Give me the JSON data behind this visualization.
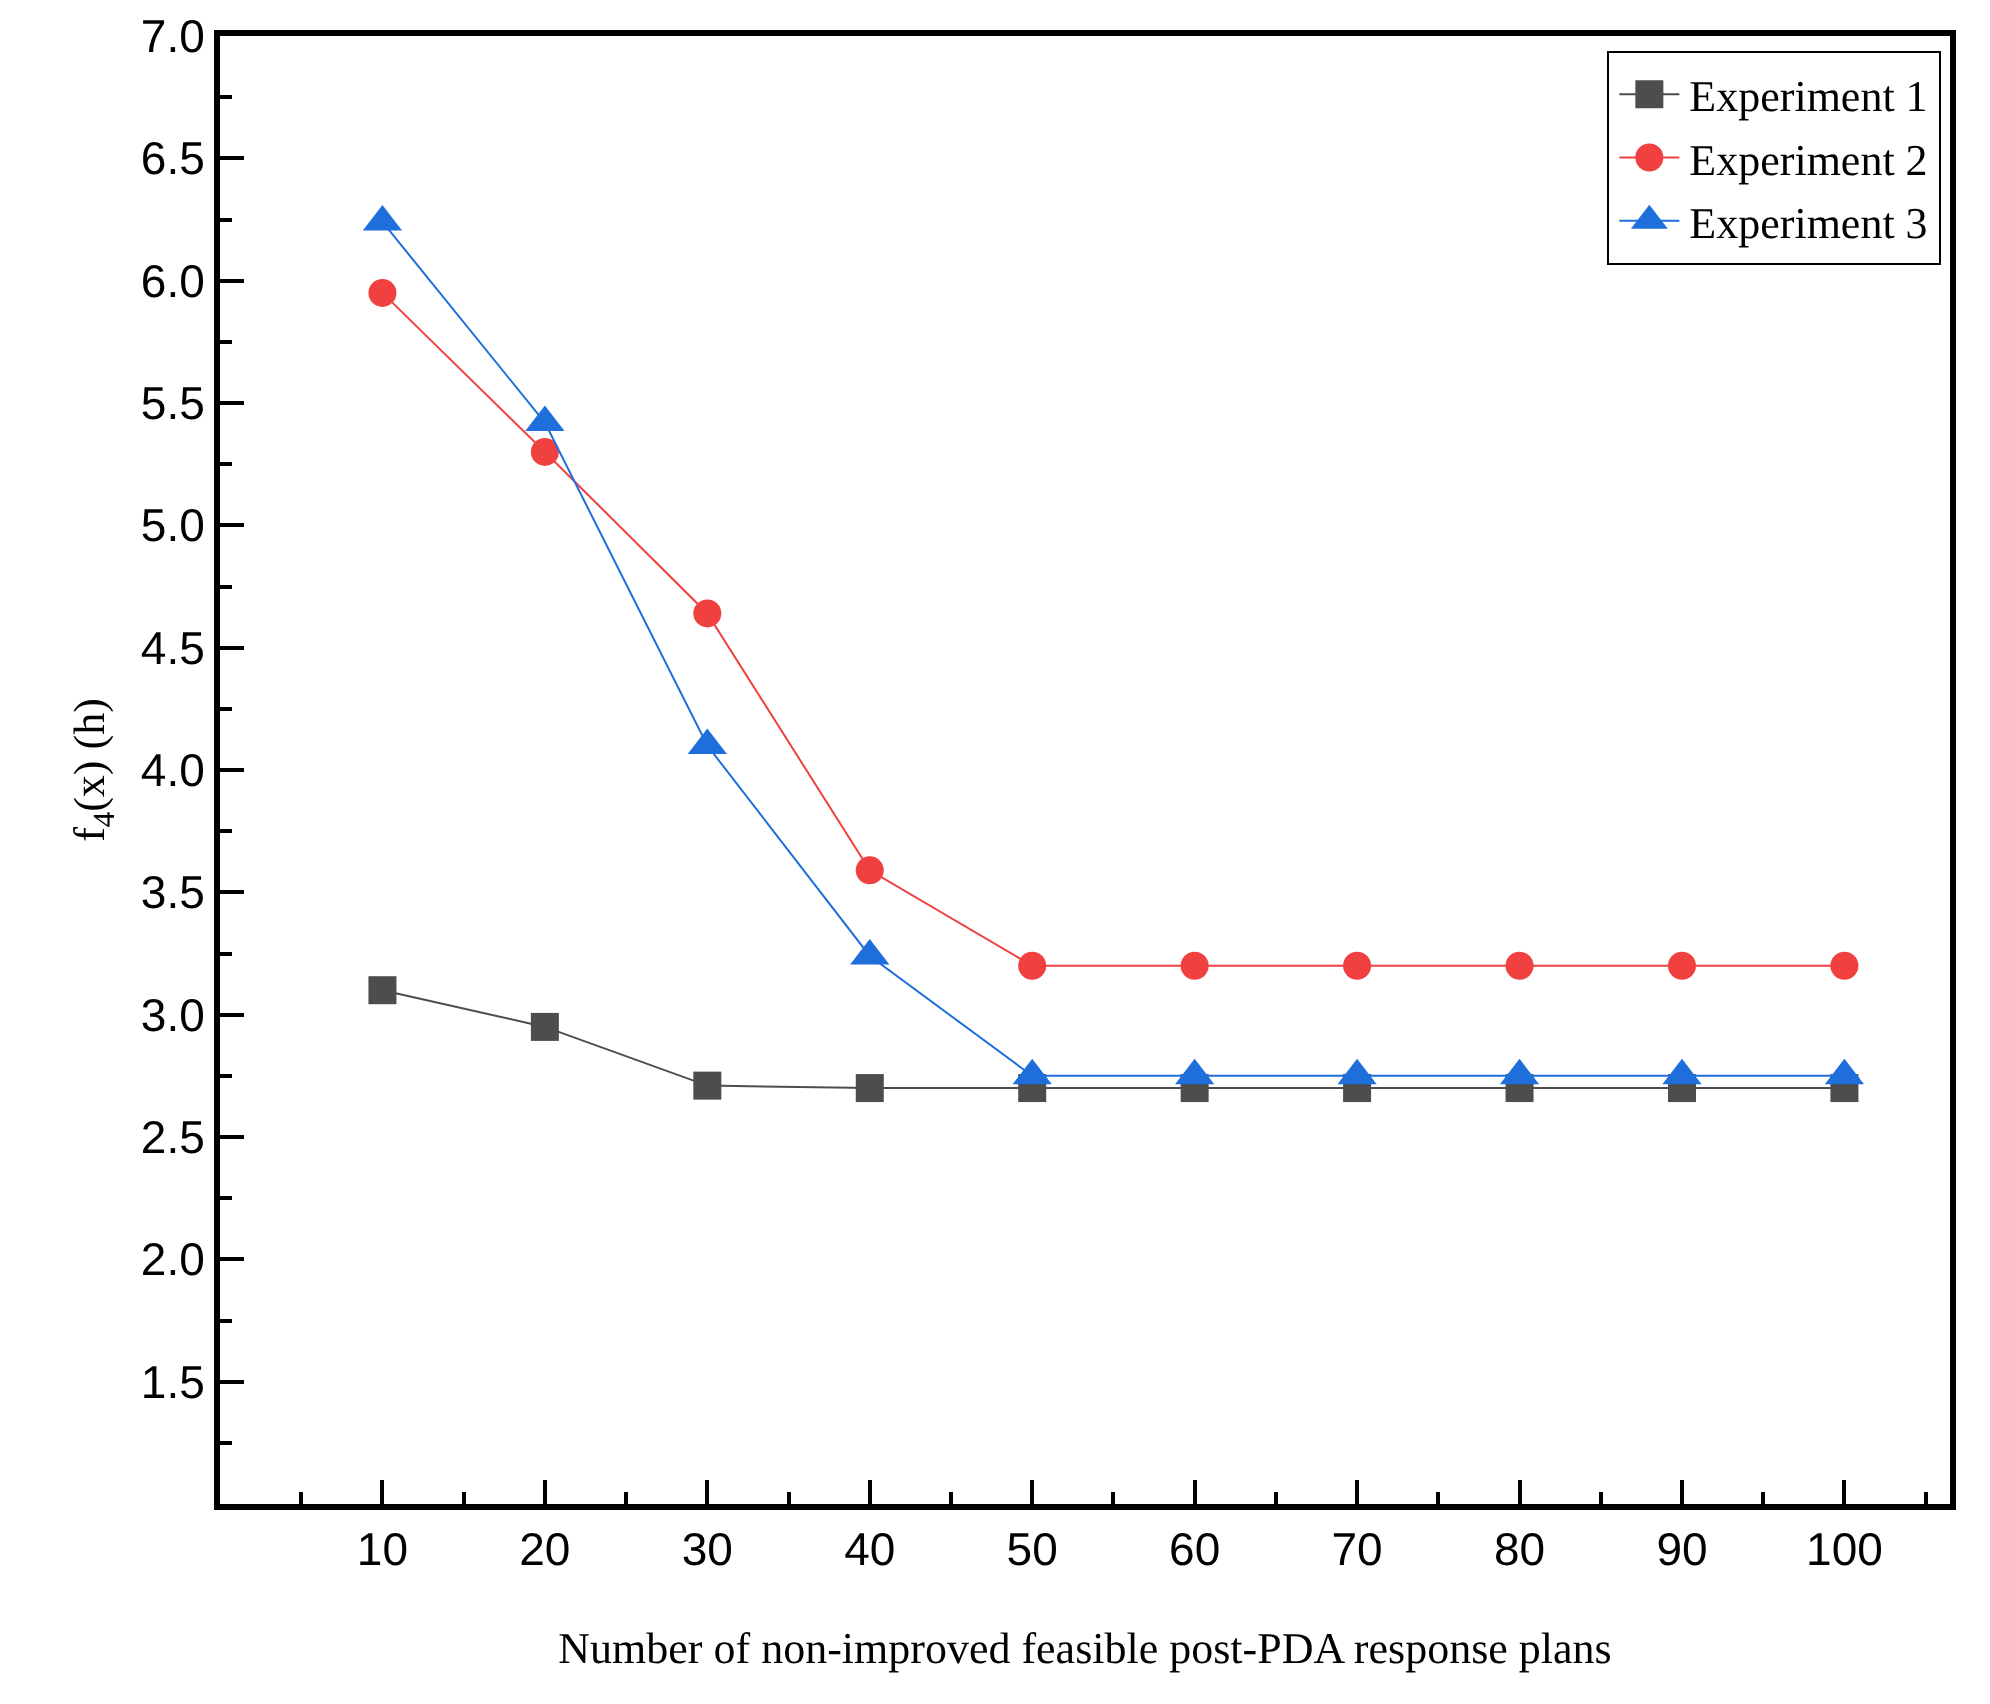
{
  "chart_data": {
    "type": "line",
    "xlabel": "Number of non-improved feasible post-PDA response plans",
    "ylabel": "f$_{4}$(x) (h)",
    "x": [
      10,
      20,
      30,
      40,
      50,
      60,
      70,
      80,
      90,
      100
    ],
    "xlim": [
      0,
      106.5
    ],
    "xticks": [
      10,
      20,
      30,
      40,
      50,
      60,
      70,
      80,
      90,
      100
    ],
    "ylim": [
      1.0,
      7.0
    ],
    "yticks": [
      1.5,
      {
        "value": 2,
        "label": "2.0"
      },
      2.5,
      {
        "value": 3,
        "label": "3.0"
      },
      3.5,
      {
        "value": 4,
        "label": "4.0"
      },
      4.5,
      {
        "value": 5,
        "label": "5.0"
      },
      5.5,
      {
        "value": 6,
        "label": "6.0"
      },
      6.5,
      {
        "value": 7,
        "label": "7.0"
      }
    ],
    "series": [
      {
        "name": "Experiment 1",
        "color": "#4d4d4d",
        "marker": "square",
        "values": [
          3.1,
          2.95,
          2.71,
          2.7,
          2.7,
          2.7,
          2.7,
          2.7,
          2.7,
          2.7
        ]
      },
      {
        "name": "Experiment 2",
        "color": "#f04040",
        "marker": "circle",
        "values": [
          5.95,
          5.3,
          4.64,
          3.59,
          3.2,
          3.2,
          3.2,
          3.2,
          3.2,
          3.2
        ]
      },
      {
        "name": "Experiment 3",
        "color": "#1e6fdc",
        "marker": "triangle",
        "values": [
          6.24,
          5.42,
          4.1,
          3.24,
          2.75,
          2.75,
          2.75,
          2.75,
          2.75,
          2.75
        ]
      }
    ],
    "grid": false,
    "legend": "top right",
    "line_style": "solid"
  }
}
